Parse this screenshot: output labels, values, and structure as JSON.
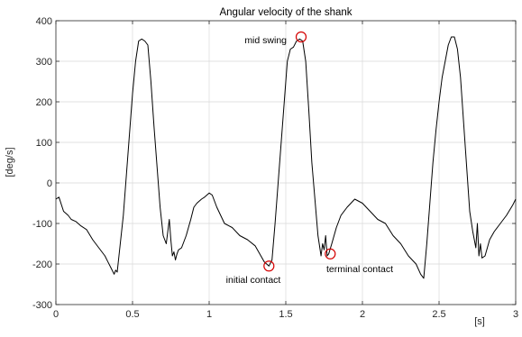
{
  "chart_data": {
    "type": "line",
    "title": "Angular velocity of the shank",
    "xlabel": "[s]",
    "ylabel": "[deg/s]",
    "xlim": [
      0,
      3
    ],
    "ylim": [
      -300,
      400
    ],
    "xticks": [
      0,
      0.5,
      1,
      1.5,
      2,
      2.5,
      3
    ],
    "xtick_labels": [
      "0",
      "0.5",
      "1",
      "1.5",
      "2",
      "2.5",
      "3"
    ],
    "yticks": [
      -300,
      -200,
      -100,
      0,
      100,
      200,
      300,
      400
    ],
    "ytick_labels": [
      "-300",
      "-200",
      "-100",
      "0",
      "100",
      "200",
      "300",
      "400"
    ],
    "grid": true,
    "colors": {
      "line": "#000000",
      "marker": "#d40000",
      "grid": "#d9d9d9",
      "axis": "#262626"
    },
    "series": [
      {
        "x": [
          0,
          0.02,
          0.05,
          0.08,
          0.1,
          0.13,
          0.16,
          0.2,
          0.24,
          0.28,
          0.3,
          0.32,
          0.34,
          0.36,
          0.38,
          0.39,
          0.4,
          0.42,
          0.44,
          0.46,
          0.48,
          0.5,
          0.52,
          0.54,
          0.56,
          0.58,
          0.6,
          0.62,
          0.64,
          0.66,
          0.68,
          0.7,
          0.72,
          0.74,
          0.75,
          0.76,
          0.77,
          0.78,
          0.79,
          0.8,
          0.82,
          0.85,
          0.88,
          0.9,
          0.92,
          0.95,
          0.97,
          1.0,
          1.02,
          1.05,
          1.1,
          1.15,
          1.2,
          1.25,
          1.3,
          1.33,
          1.36,
          1.39,
          1.41,
          1.43,
          1.45,
          1.47,
          1.49,
          1.51,
          1.53,
          1.55,
          1.57,
          1.59,
          1.61,
          1.63,
          1.65,
          1.67,
          1.69,
          1.71,
          1.73,
          1.74,
          1.75,
          1.76,
          1.77,
          1.78,
          1.8,
          1.83,
          1.86,
          1.9,
          1.95,
          2.0,
          2.05,
          2.1,
          2.15,
          2.2,
          2.25,
          2.3,
          2.35,
          2.38,
          2.4,
          2.42,
          2.44,
          2.46,
          2.48,
          2.5,
          2.52,
          2.54,
          2.56,
          2.58,
          2.6,
          2.62,
          2.64,
          2.66,
          2.68,
          2.7,
          2.72,
          2.74,
          2.75,
          2.76,
          2.77,
          2.78,
          2.8,
          2.83,
          2.86,
          2.9,
          2.94,
          2.98,
          3.0
        ],
        "y": [
          -40,
          -35,
          -70,
          -80,
          -90,
          -95,
          -105,
          -115,
          -140,
          -160,
          -170,
          -180,
          -195,
          -210,
          -225,
          -215,
          -220,
          -150,
          -80,
          20,
          120,
          220,
          300,
          350,
          355,
          350,
          340,
          250,
          140,
          40,
          -60,
          -130,
          -150,
          -90,
          -140,
          -180,
          -170,
          -190,
          -175,
          -165,
          -160,
          -130,
          -90,
          -60,
          -50,
          -40,
          -35,
          -25,
          -30,
          -60,
          -100,
          -110,
          -130,
          -140,
          -155,
          -175,
          -195,
          -205,
          -190,
          -100,
          0,
          100,
          200,
          300,
          330,
          335,
          350,
          355,
          350,
          300,
          180,
          50,
          -40,
          -130,
          -180,
          -150,
          -165,
          -130,
          -180,
          -175,
          -150,
          -110,
          -80,
          -60,
          -40,
          -50,
          -70,
          -90,
          -100,
          -130,
          -150,
          -180,
          -200,
          -225,
          -235,
          -150,
          -50,
          50,
          130,
          200,
          260,
          300,
          340,
          360,
          360,
          330,
          260,
          150,
          40,
          -70,
          -120,
          -160,
          -100,
          -180,
          -150,
          -185,
          -180,
          -140,
          -120,
          -100,
          -80,
          -55,
          -40
        ]
      }
    ],
    "annotations": [
      {
        "text": "mid swing",
        "x": 1.6,
        "y": 360
      },
      {
        "text": "initial contact",
        "x": 1.39,
        "y": -205
      },
      {
        "text": "terminal contact",
        "x": 1.79,
        "y": -175
      }
    ]
  }
}
